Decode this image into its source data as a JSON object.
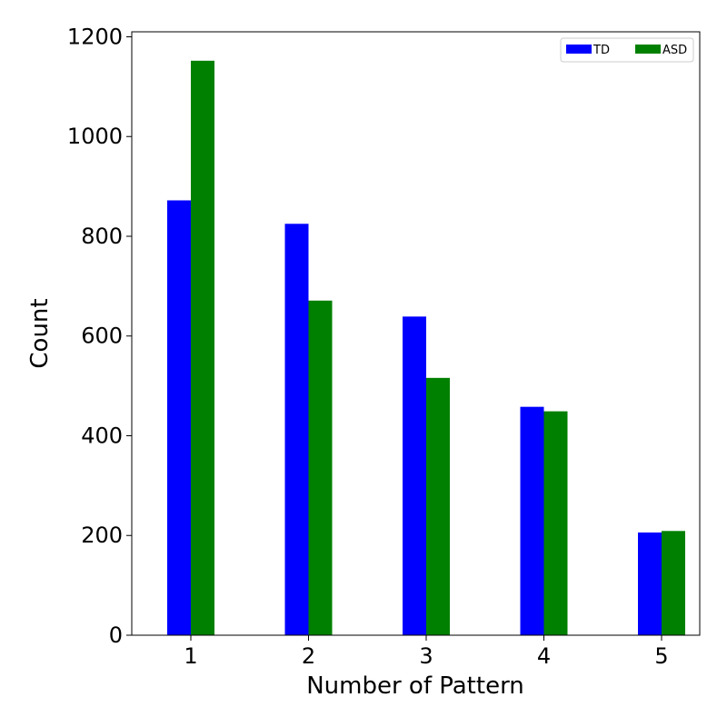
{
  "chart_data": {
    "type": "bar",
    "categories": [
      "1",
      "2",
      "3",
      "4",
      "5"
    ],
    "series": [
      {
        "name": "TD",
        "color": "#0000ff",
        "values": [
          872,
          825,
          639,
          458,
          206
        ]
      },
      {
        "name": "ASD",
        "color": "#008000",
        "values": [
          1152,
          671,
          516,
          449,
          209
        ]
      }
    ],
    "xlabel": "Number of Pattern",
    "ylabel": "Count",
    "ylim": [
      0,
      1210
    ],
    "yticks": [
      0,
      200,
      400,
      600,
      800,
      1000,
      1200
    ],
    "grid": false,
    "legend_position": "top-right"
  }
}
